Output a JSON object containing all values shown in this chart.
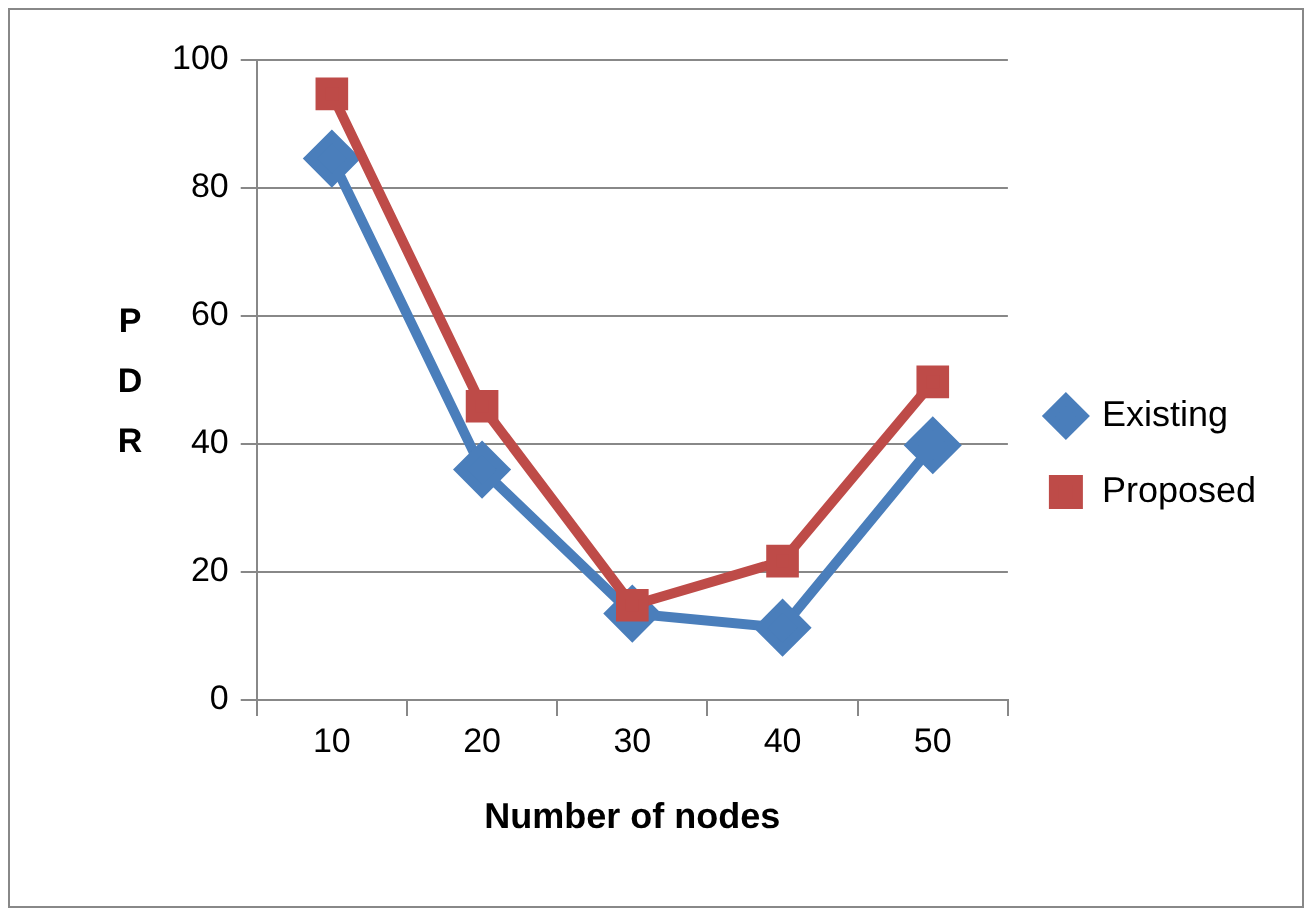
{
  "chart_data": {
    "type": "line",
    "xlabel": "Number of nodes",
    "ylabel": "PDR",
    "categories": [
      "10",
      "20",
      "30",
      "40",
      "50"
    ],
    "ylim": [
      0,
      100
    ],
    "yticks": [
      0,
      20,
      40,
      60,
      80,
      100
    ],
    "grid": "y",
    "legend": "right",
    "line_style": "solid",
    "series": [
      {
        "name": "Existing",
        "color": "#4a7ebb",
        "marker": "diamond",
        "values": [
          84.6,
          36,
          13.5,
          11.3,
          39.8
        ]
      },
      {
        "name": "Proposed",
        "color": "#be4b48",
        "marker": "square",
        "values": [
          94.7,
          45.9,
          14.8,
          21.7,
          49.7
        ]
      }
    ]
  }
}
